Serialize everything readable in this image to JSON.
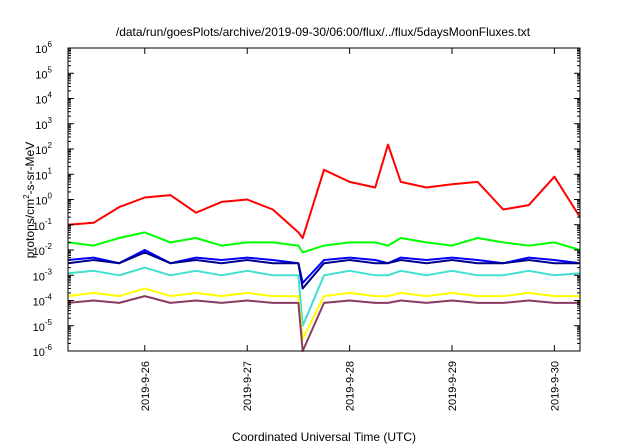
{
  "chart_data": {
    "type": "line",
    "title": "/data/run/goesPlots/archive/2019-09-30/06:00/flux/../flux/5daysMoonFluxes.txt",
    "xlabel": "Coordinated Universal Time (UTC)",
    "ylabel_parts": [
      "protons/cm",
      "2",
      "-s-sr-MeV"
    ],
    "yscale": "log",
    "ylim": [
      1e-06,
      1000000.0
    ],
    "xlim": [
      "2019-09-25 06:00",
      "2019-09-30 06:00"
    ],
    "xtick_labels": [
      "2019-9-26",
      "2019-9-27",
      "2019-9-28",
      "2019-9-29",
      "2019-9-30"
    ],
    "ytick_labels": [
      {
        "base": "10",
        "exp": "-6"
      },
      {
        "base": "10",
        "exp": "-5"
      },
      {
        "base": "10",
        "exp": "-4"
      },
      {
        "base": "10",
        "exp": "-3"
      },
      {
        "base": "10",
        "exp": "-2"
      },
      {
        "base": "10",
        "exp": "-1"
      },
      {
        "base": "10",
        "exp": "0"
      },
      {
        "base": "10",
        "exp": "1"
      },
      {
        "base": "10",
        "exp": "2"
      },
      {
        "base": "10",
        "exp": "3"
      },
      {
        "base": "10",
        "exp": "4"
      },
      {
        "base": "10",
        "exp": "5"
      },
      {
        "base": "10",
        "exp": "6"
      }
    ],
    "grid": false,
    "x": [
      "09-25 06:00",
      "09-25 12:00",
      "09-25 18:00",
      "09-26 00:00",
      "09-26 06:00",
      "09-26 12:00",
      "09-26 18:00",
      "09-27 00:00",
      "09-27 06:00",
      "09-27 12:00",
      "09-27 13:00",
      "09-27 18:00",
      "09-28 00:00",
      "09-28 06:00",
      "09-28 09:00",
      "09-28 12:00",
      "09-28 18:00",
      "09-29 00:00",
      "09-29 06:00",
      "09-29 12:00",
      "09-29 18:00",
      "09-30 00:00",
      "09-30 06:00"
    ],
    "series": [
      {
        "color": "#ff0000",
        "values": [
          0.1,
          0.12,
          0.5,
          1.2,
          1.5,
          0.3,
          0.8,
          1.0,
          0.4,
          0.05,
          0.03,
          15,
          5,
          3,
          150,
          5,
          3,
          4,
          5,
          0.4,
          0.6,
          8,
          0.2
        ]
      },
      {
        "color": "#00ff00",
        "values": [
          0.02,
          0.015,
          0.03,
          0.05,
          0.02,
          0.03,
          0.015,
          0.02,
          0.02,
          0.015,
          0.008,
          0.015,
          0.02,
          0.02,
          0.015,
          0.03,
          0.02,
          0.015,
          0.03,
          0.02,
          0.015,
          0.02,
          0.01
        ]
      },
      {
        "color": "#0000ff",
        "values": [
          0.004,
          0.005,
          0.003,
          0.01,
          0.003,
          0.005,
          0.004,
          0.005,
          0.004,
          0.003,
          0.0005,
          0.004,
          0.005,
          0.004,
          0.003,
          0.005,
          0.004,
          0.005,
          0.004,
          0.003,
          0.005,
          0.004,
          0.003
        ]
      },
      {
        "color": "#00008b",
        "values": [
          0.003,
          0.004,
          0.003,
          0.008,
          0.003,
          0.004,
          0.003,
          0.004,
          0.003,
          0.003,
          0.0003,
          0.003,
          0.004,
          0.003,
          0.003,
          0.004,
          0.003,
          0.004,
          0.003,
          0.003,
          0.004,
          0.003,
          0.003
        ]
      },
      {
        "color": "#40e0d0",
        "values": [
          0.0012,
          0.0015,
          0.001,
          0.002,
          0.001,
          0.0015,
          0.001,
          0.0015,
          0.001,
          0.001,
          1e-05,
          0.001,
          0.0015,
          0.001,
          0.001,
          0.0015,
          0.001,
          0.0015,
          0.001,
          0.001,
          0.0015,
          0.001,
          0.0012
        ]
      },
      {
        "color": "#ffff00",
        "values": [
          0.00015,
          0.0002,
          0.00015,
          0.0003,
          0.00015,
          0.0002,
          0.00015,
          0.0002,
          0.00015,
          0.00015,
          3e-06,
          0.00015,
          0.0002,
          0.00015,
          0.00015,
          0.0002,
          0.00015,
          0.0002,
          0.00015,
          0.00015,
          0.0002,
          0.00015,
          0.00015
        ]
      },
      {
        "color": "#8b3a62",
        "values": [
          8e-05,
          0.0001,
          8e-05,
          0.00015,
          8e-05,
          0.0001,
          8e-05,
          0.0001,
          8e-05,
          8e-05,
          1e-06,
          8e-05,
          0.0001,
          8e-05,
          8e-05,
          0.0001,
          8e-05,
          0.0001,
          8e-05,
          8e-05,
          0.0001,
          8e-05,
          8e-05
        ]
      }
    ]
  }
}
